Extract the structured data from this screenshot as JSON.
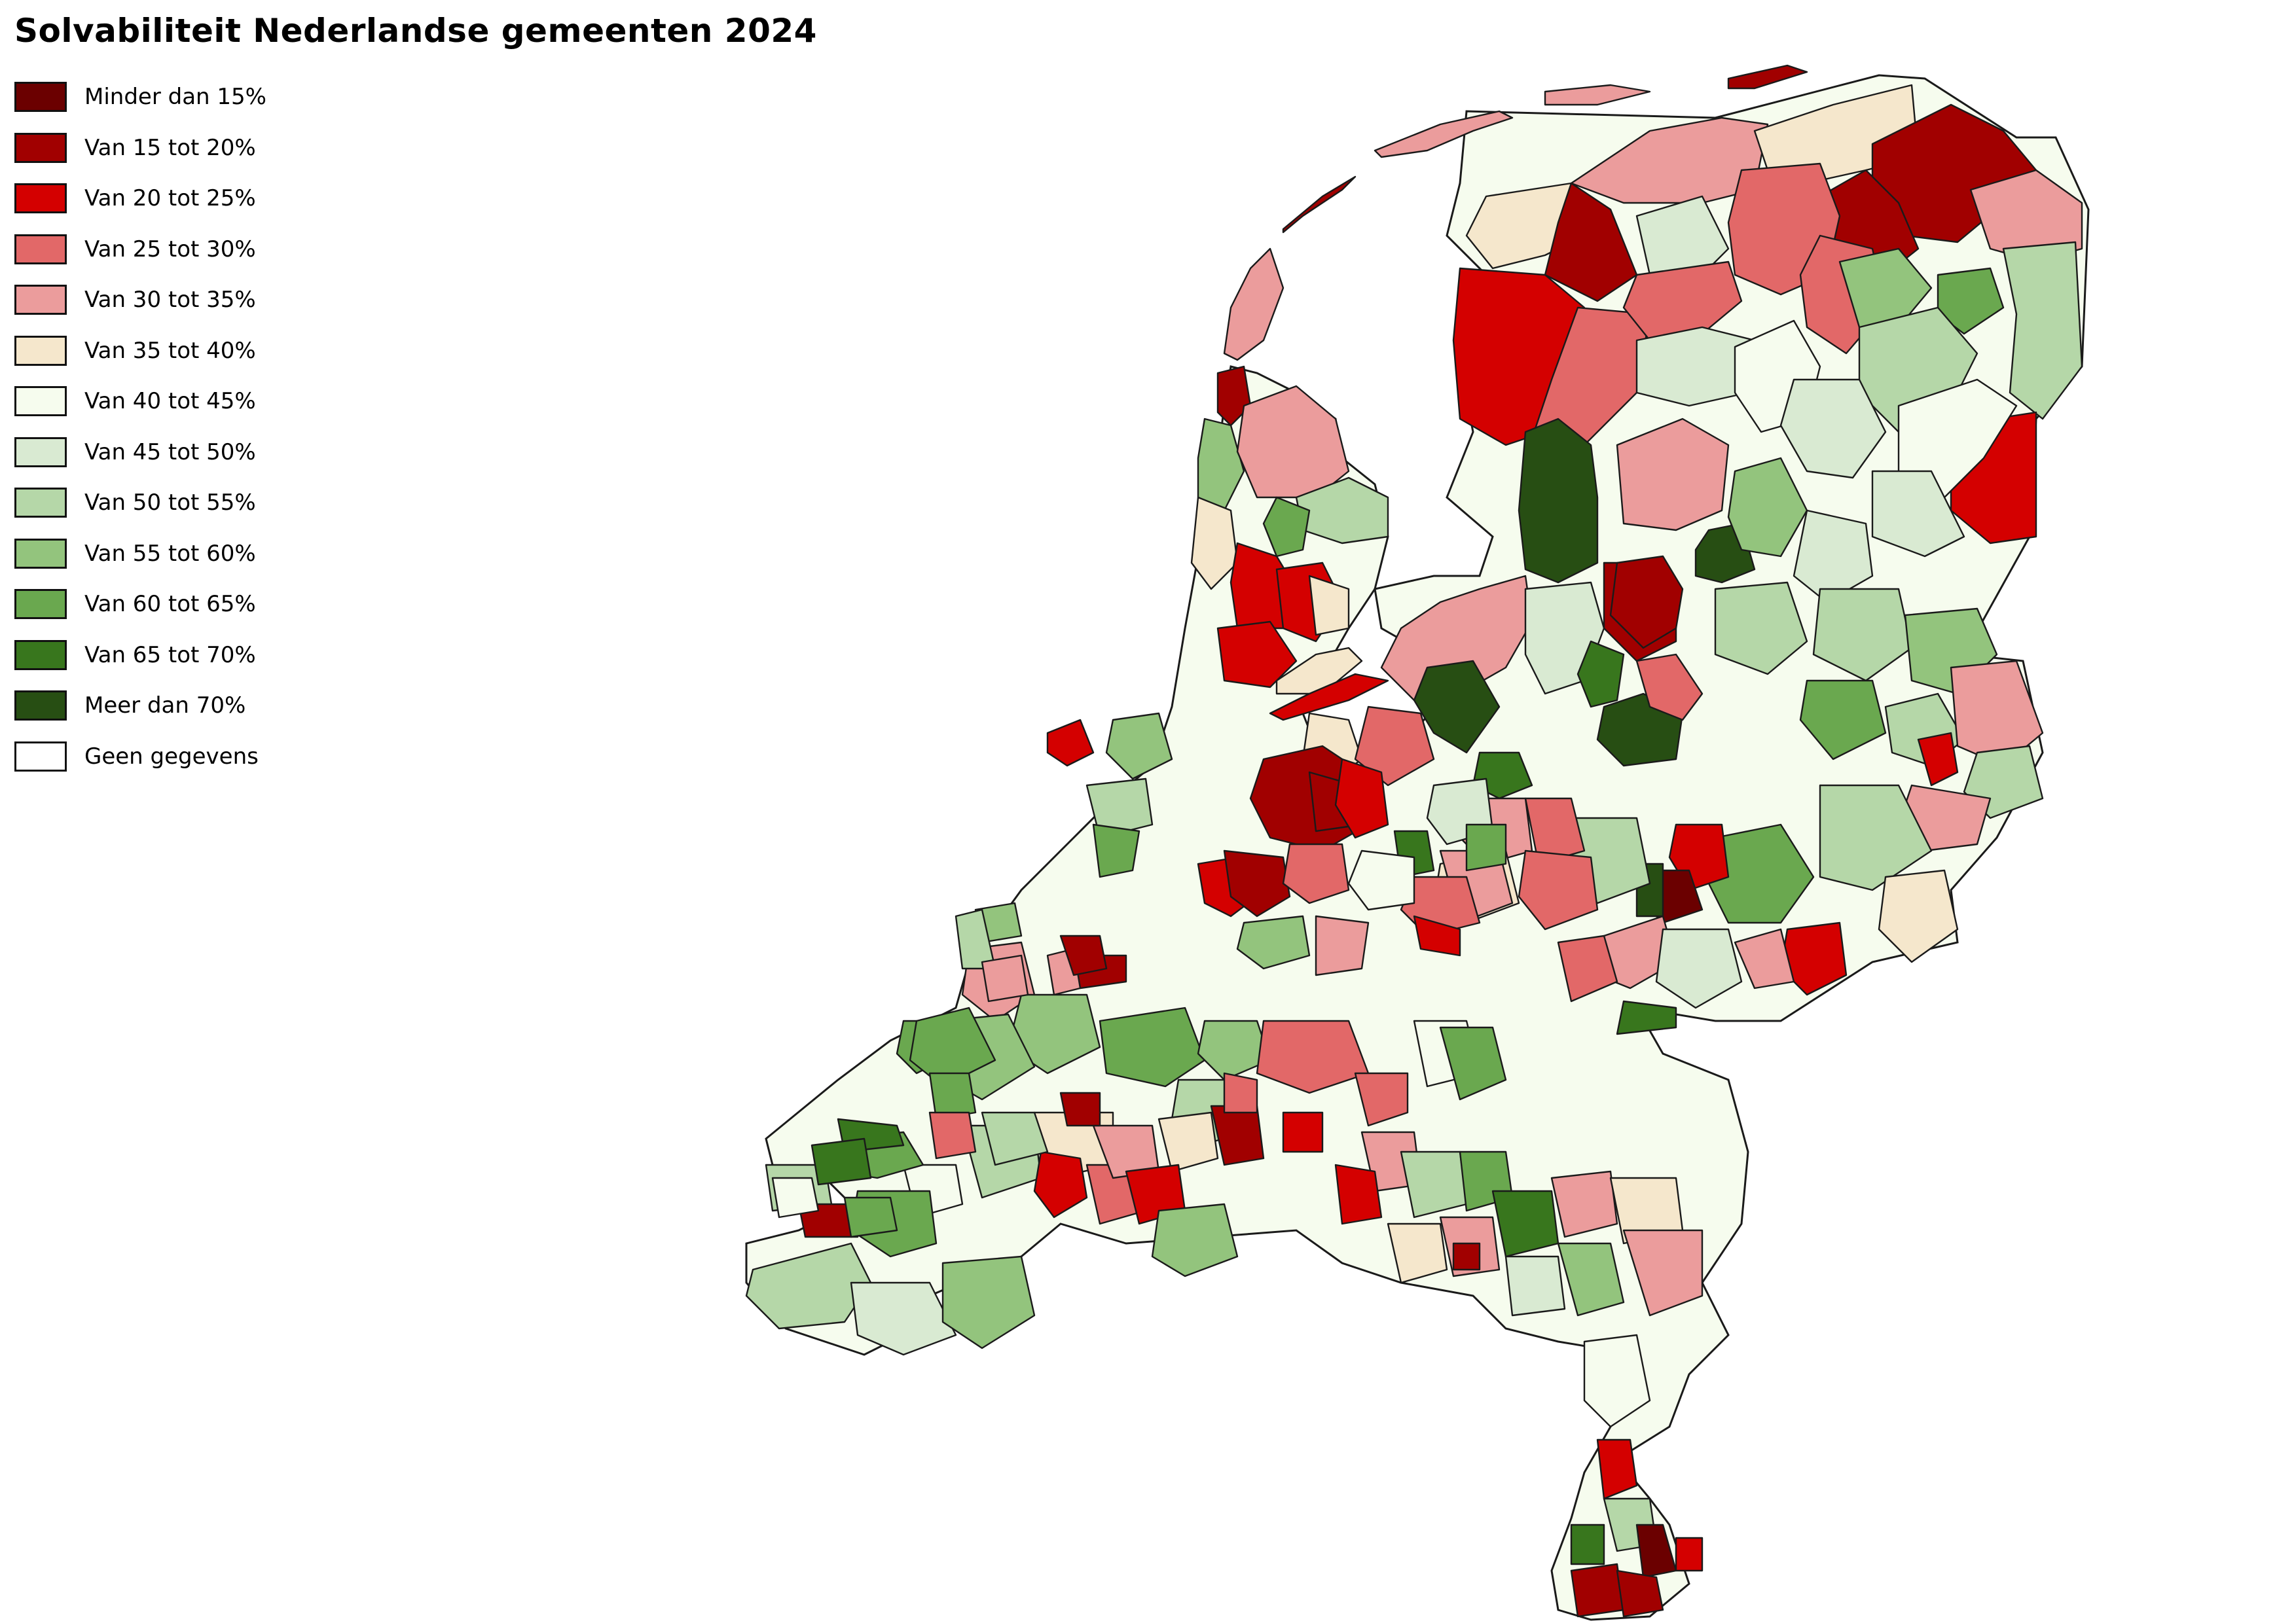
{
  "title": "Solvabiliteit Nederlandse gemeenten 2024",
  "legend": [
    {
      "label": "Minder dan 15%",
      "color": "#6b0000"
    },
    {
      "label": "Van 15 tot 20%",
      "color": "#a10000"
    },
    {
      "label": "Van 20 tot 25%",
      "color": "#d40000"
    },
    {
      "label": "Van 25 tot 30%",
      "color": "#e26868"
    },
    {
      "label": "Van 30 tot 35%",
      "color": "#eb9c9c"
    },
    {
      "label": "Van 35 tot 40%",
      "color": "#f5e7cc"
    },
    {
      "label": "Van 40 tot 45%",
      "color": "#f6fcee"
    },
    {
      "label": "Van 45 tot 50%",
      "color": "#d9ead2"
    },
    {
      "label": "Van 50 tot 55%",
      "color": "#b5d7a8"
    },
    {
      "label": "Van 55 tot 60%",
      "color": "#93c47d"
    },
    {
      "label": "Van 60 tot 65%",
      "color": "#6aa84f"
    },
    {
      "label": "Van 65 tot 70%",
      "color": "#38761d"
    },
    {
      "label": "Meer dan 70%",
      "color": "#274e13"
    },
    {
      "label": "Geen gegevens",
      "color": "#ffffff"
    }
  ]
}
